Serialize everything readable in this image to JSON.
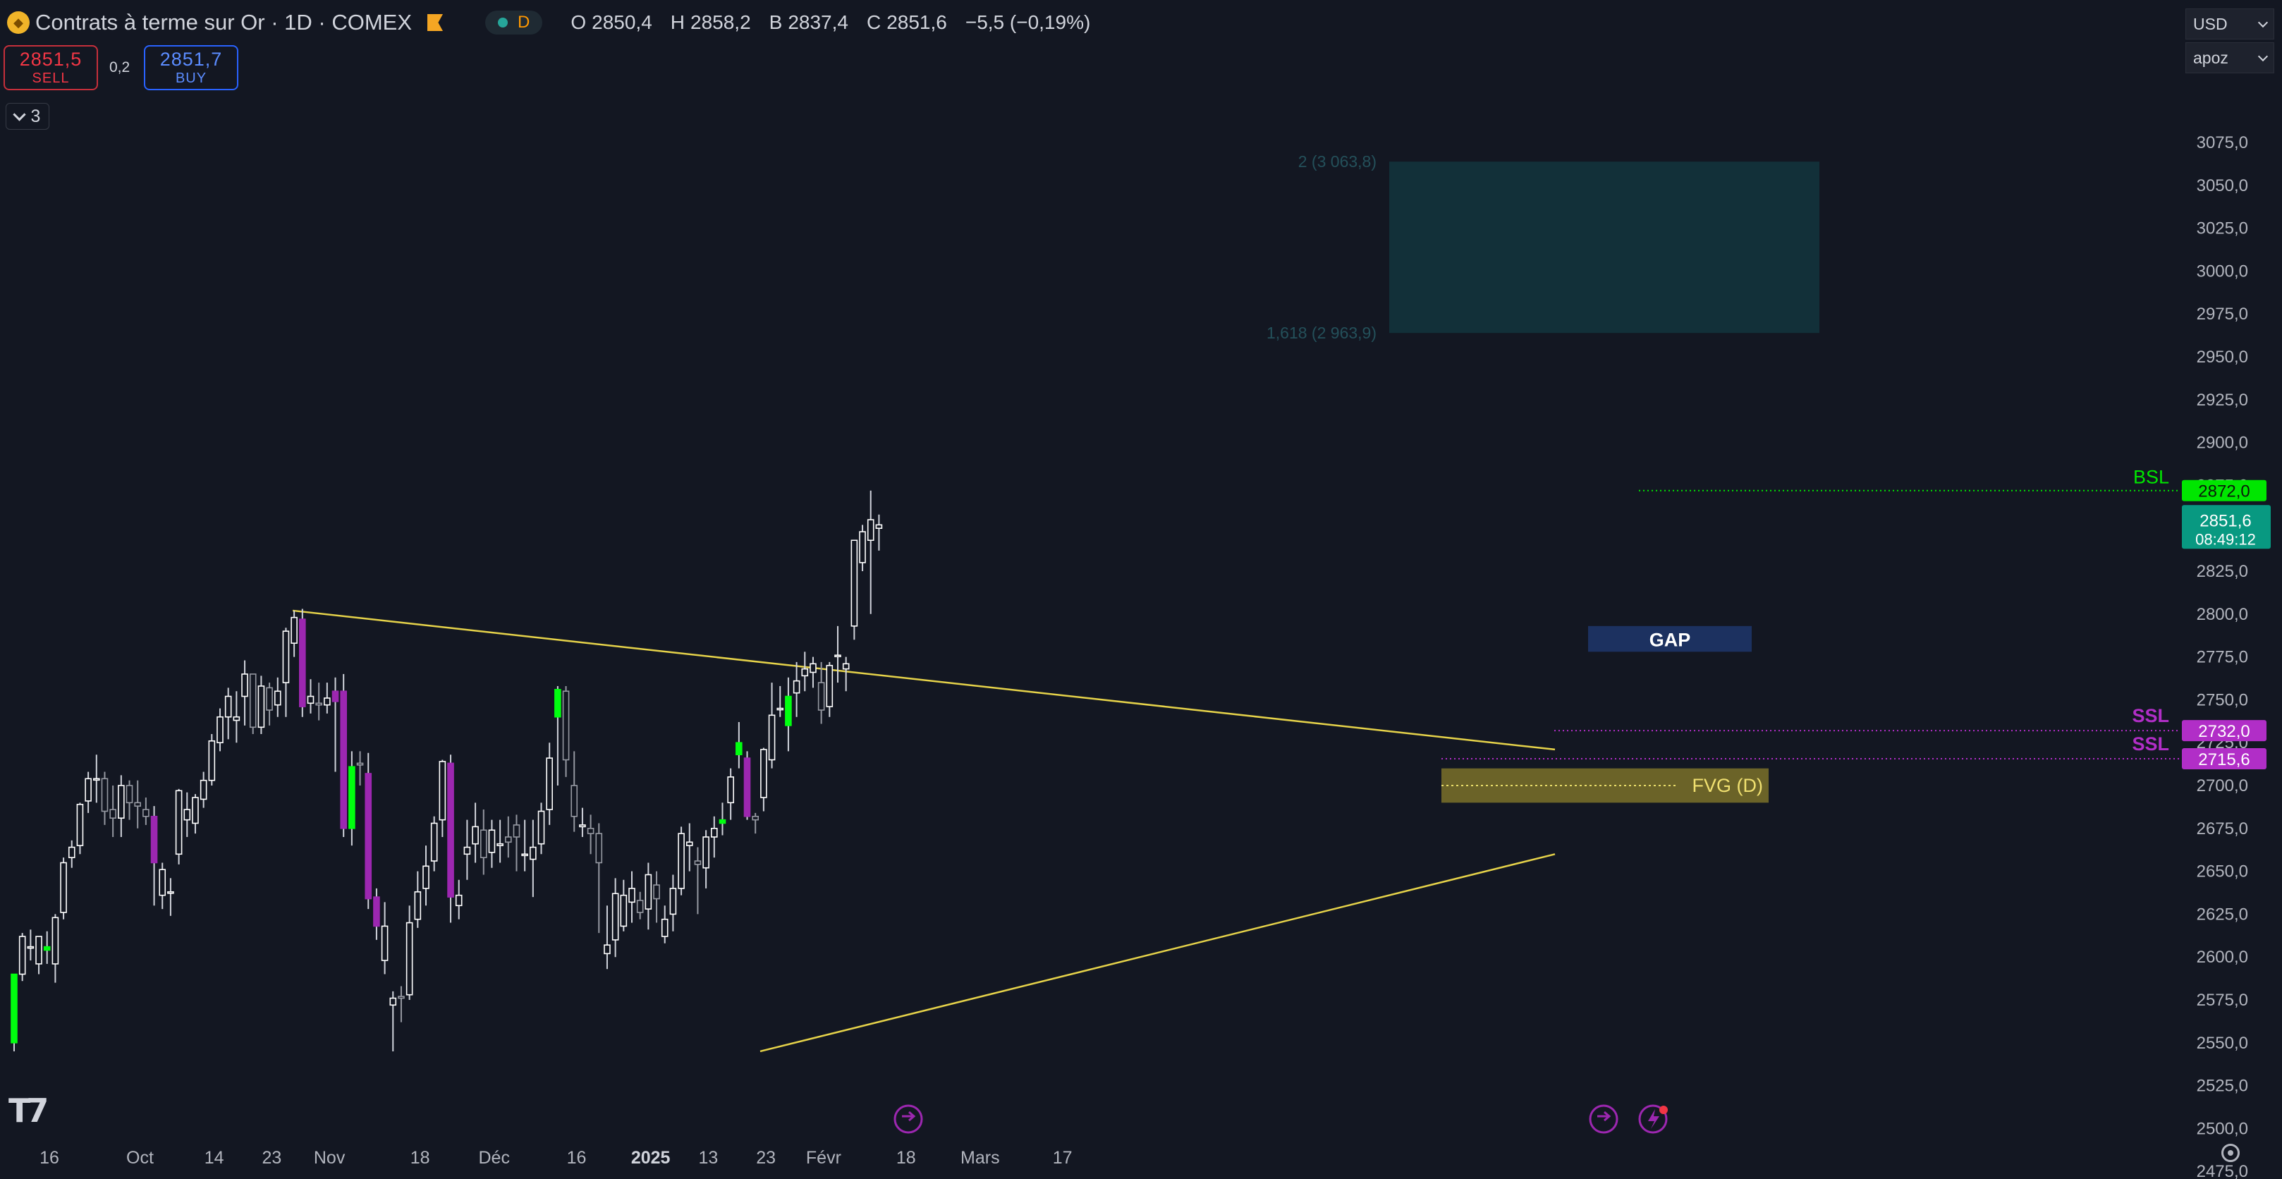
{
  "header": {
    "title": "Contrats à terme sur Or · 1D · COMEX",
    "market_status": "D",
    "ohlc": [
      {
        "label": "O",
        "value": "2850,4"
      },
      {
        "label": "H",
        "value": "2858,2"
      },
      {
        "label": "B",
        "value": "2837,4"
      },
      {
        "label": "C",
        "value": "2851,6"
      }
    ],
    "change": "−5,5 (−0,19%)"
  },
  "trade": {
    "sell_price": "2851,5",
    "sell_label": "SELL",
    "spread": "0,2",
    "buy_price": "2851,7",
    "buy_label": "BUY"
  },
  "indicators": {
    "count": "3"
  },
  "right_controls": {
    "currency": "USD",
    "unit": "apoz"
  },
  "colors": {
    "background": "#131722",
    "bull": "#ffffff",
    "bull_highlight": "#00ff0f",
    "bear": "#131722",
    "bear_highlight": "#9c27b0",
    "trendline": "#e6d34a",
    "target_zone": "#123039",
    "fvg": "#6b6328",
    "gap": "#1c3160",
    "bsl": "#00e600",
    "ssl": "#b12ec7",
    "last_price": "#089981"
  },
  "chart_data": {
    "type": "candlestick",
    "ylim": [
      2462,
      3090
    ],
    "y_ticks": [
      "3075,0",
      "3050,0",
      "3025,0",
      "3000,0",
      "2975,0",
      "2950,0",
      "2925,0",
      "2900,0",
      "2875,0",
      "2850,0",
      "2825,0",
      "2800,0",
      "2775,0",
      "2750,0",
      "2725,0",
      "2700,0",
      "2675,0",
      "2650,0",
      "2625,0",
      "2600,0",
      "2575,0",
      "2550,0",
      "2525,0",
      "2500,0",
      "2475,0"
    ],
    "x_ticks": [
      {
        "label": "16",
        "bar": 0
      },
      {
        "label": "Oct",
        "bar": 11
      },
      {
        "label": "14",
        "bar": 20
      },
      {
        "label": "23",
        "bar": 27
      },
      {
        "label": "Nov",
        "bar": 34
      },
      {
        "label": "18",
        "bar": 45
      },
      {
        "label": "Déc",
        "bar": 54
      },
      {
        "label": "16",
        "bar": 64
      },
      {
        "label": "2025",
        "bar": 73
      },
      {
        "label": "13",
        "bar": 80
      },
      {
        "label": "23",
        "bar": 87
      },
      {
        "label": "Févr",
        "bar": 94
      },
      {
        "label": "18",
        "bar": 104
      },
      {
        "label": "Mars",
        "bar": 113
      },
      {
        "label": "17",
        "bar": 123
      }
    ],
    "candles": [
      [
        2550,
        2590,
        2545,
        2590,
        "g"
      ],
      [
        2590,
        2614,
        2586,
        2612,
        "w"
      ],
      [
        2606,
        2616,
        2598,
        2606,
        "w"
      ],
      [
        2596,
        2612,
        2590,
        2612,
        "w"
      ],
      [
        2606,
        2615,
        2596,
        2604,
        "g"
      ],
      [
        2596,
        2625,
        2585,
        2623,
        "w"
      ],
      [
        2626,
        2658,
        2622,
        2655,
        "w"
      ],
      [
        2658,
        2668,
        2652,
        2664,
        "w"
      ],
      [
        2665,
        2690,
        2660,
        2689,
        "w"
      ],
      [
        2691,
        2708,
        2684,
        2704,
        "w"
      ],
      [
        2704,
        2718,
        2690,
        2704,
        "w"
      ],
      [
        2704,
        2708,
        2677,
        2685,
        "w"
      ],
      [
        2686,
        2700,
        2670,
        2681,
        "w"
      ],
      [
        2681,
        2706,
        2670,
        2700,
        "w"
      ],
      [
        2700,
        2703,
        2680,
        2690,
        "w"
      ],
      [
        2690,
        2703,
        2675,
        2688,
        "w"
      ],
      [
        2686,
        2693,
        2677,
        2682,
        "w"
      ],
      [
        2682,
        2688,
        2630,
        2655,
        "p"
      ],
      [
        2636,
        2655,
        2628,
        2651,
        "w"
      ],
      [
        2638,
        2646,
        2624,
        2638,
        "w"
      ],
      [
        2660,
        2698,
        2654,
        2697,
        "w"
      ],
      [
        2680,
        2696,
        2670,
        2686,
        "w"
      ],
      [
        2678,
        2695,
        2672,
        2693,
        "w"
      ],
      [
        2692,
        2708,
        2687,
        2703,
        "w"
      ],
      [
        2703,
        2730,
        2700,
        2726,
        "w"
      ],
      [
        2725,
        2745,
        2720,
        2740,
        "w"
      ],
      [
        2740,
        2757,
        2727,
        2752,
        "w"
      ],
      [
        2738,
        2755,
        2725,
        2740,
        "w"
      ],
      [
        2752,
        2773,
        2735,
        2765,
        "w"
      ],
      [
        2765,
        2765,
        2730,
        2734,
        "w"
      ],
      [
        2734,
        2764,
        2730,
        2758,
        "w"
      ],
      [
        2757,
        2760,
        2735,
        2744,
        "w"
      ],
      [
        2747,
        2763,
        2740,
        2755,
        "w"
      ],
      [
        2760,
        2792,
        2740,
        2790,
        "w"
      ],
      [
        2783,
        2802,
        2775,
        2798,
        "w"
      ],
      [
        2797,
        2803,
        2740,
        2746,
        "p"
      ],
      [
        2748,
        2762,
        2742,
        2752,
        "w"
      ],
      [
        2748,
        2760,
        2738,
        2747,
        "w"
      ],
      [
        2747,
        2760,
        2742,
        2751,
        "w"
      ],
      [
        2749,
        2763,
        2708,
        2755,
        "p"
      ],
      [
        2755,
        2765,
        2670,
        2675,
        "p"
      ],
      [
        2675,
        2720,
        2665,
        2711,
        "g"
      ],
      [
        2713,
        2720,
        2700,
        2712,
        "w"
      ],
      [
        2707,
        2719,
        2628,
        2634,
        "p"
      ],
      [
        2635,
        2640,
        2610,
        2618,
        "p"
      ],
      [
        2598,
        2632,
        2590,
        2618,
        "w"
      ],
      [
        2572,
        2580,
        2545,
        2576,
        "w"
      ],
      [
        2577,
        2583,
        2562,
        2576,
        "w"
      ],
      [
        2578,
        2630,
        2575,
        2620,
        "w"
      ],
      [
        2622,
        2650,
        2617,
        2638,
        "w"
      ],
      [
        2640,
        2665,
        2630,
        2653,
        "w"
      ],
      [
        2656,
        2682,
        2650,
        2678,
        "w"
      ],
      [
        2680,
        2715,
        2670,
        2714,
        "w"
      ],
      [
        2713,
        2718,
        2620,
        2635,
        "p"
      ],
      [
        2630,
        2645,
        2622,
        2636,
        "w"
      ],
      [
        2660,
        2680,
        2645,
        2664,
        "w"
      ],
      [
        2666,
        2690,
        2655,
        2676,
        "w"
      ],
      [
        2674,
        2686,
        2648,
        2658,
        "w"
      ],
      [
        2661,
        2680,
        2652,
        2674,
        "w"
      ],
      [
        2665,
        2680,
        2655,
        2666,
        "w"
      ],
      [
        2670,
        2682,
        2658,
        2667,
        "w"
      ],
      [
        2677,
        2683,
        2650,
        2670,
        "w"
      ],
      [
        2660,
        2680,
        2650,
        2660,
        "w"
      ],
      [
        2657,
        2680,
        2635,
        2664,
        "w"
      ],
      [
        2666,
        2690,
        2660,
        2685,
        "w"
      ],
      [
        2686,
        2725,
        2677,
        2716,
        "w"
      ],
      [
        2740,
        2758,
        2700,
        2756,
        "g"
      ],
      [
        2755,
        2758,
        2705,
        2715,
        "w"
      ],
      [
        2700,
        2720,
        2673,
        2682,
        "w"
      ],
      [
        2676,
        2687,
        2670,
        2677,
        "w"
      ],
      [
        2675,
        2683,
        2660,
        2672,
        "w"
      ],
      [
        2672,
        2678,
        2614,
        2655,
        "w"
      ],
      [
        2602,
        2630,
        2593,
        2607,
        "w"
      ],
      [
        2610,
        2646,
        2600,
        2637,
        "w"
      ],
      [
        2618,
        2645,
        2615,
        2636,
        "w"
      ],
      [
        2632,
        2650,
        2620,
        2640,
        "w"
      ],
      [
        2633,
        2638,
        2622,
        2626,
        "w"
      ],
      [
        2628,
        2655,
        2616,
        2648,
        "w"
      ],
      [
        2642,
        2650,
        2620,
        2634,
        "w"
      ],
      [
        2612,
        2630,
        2608,
        2622,
        "w"
      ],
      [
        2625,
        2648,
        2615,
        2640,
        "w"
      ],
      [
        2640,
        2676,
        2636,
        2672,
        "w"
      ],
      [
        2665,
        2678,
        2650,
        2667,
        "w"
      ],
      [
        2656,
        2664,
        2625,
        2654,
        "w"
      ],
      [
        2652,
        2674,
        2640,
        2670,
        "w"
      ],
      [
        2670,
        2682,
        2658,
        2675,
        "w"
      ],
      [
        2678,
        2690,
        2671,
        2680,
        "g"
      ],
      [
        2690,
        2710,
        2680,
        2705,
        "w"
      ],
      [
        2718,
        2737,
        2710,
        2725,
        "g"
      ],
      [
        2716,
        2720,
        2680,
        2682,
        "p"
      ],
      [
        2682,
        2684,
        2672,
        2680,
        "w"
      ],
      [
        2693,
        2722,
        2685,
        2721,
        "w"
      ],
      [
        2715,
        2760,
        2710,
        2741,
        "w"
      ],
      [
        2745,
        2758,
        2740,
        2745,
        "w"
      ],
      [
        2735,
        2763,
        2720,
        2752,
        "g"
      ],
      [
        2754,
        2772,
        2740,
        2761,
        "w"
      ],
      [
        2764,
        2778,
        2755,
        2768,
        "w"
      ],
      [
        2766,
        2775,
        2757,
        2771,
        "w"
      ],
      [
        2760,
        2772,
        2736,
        2744,
        "w"
      ],
      [
        2746,
        2772,
        2740,
        2770,
        "w"
      ],
      [
        2776,
        2793,
        2760,
        2776,
        "w"
      ],
      [
        2768,
        2775,
        2755,
        2771,
        "w"
      ],
      [
        2793,
        2843,
        2785,
        2843,
        "w"
      ],
      [
        2830,
        2852,
        2825,
        2848,
        "w"
      ],
      [
        2843,
        2872,
        2800,
        2855,
        "w"
      ],
      [
        2850,
        2858,
        2837,
        2852,
        "w"
      ]
    ],
    "annotations": {
      "fib_2": "2 (3 063,8)",
      "fib_1618": "1,618 (2 963,9)",
      "bsl_label": "BSL",
      "bsl_price": "2872,0",
      "ssl_label": "SSL",
      "ssl1_price": "2732,0",
      "ssl2_price": "2715,6",
      "gap_label": "GAP",
      "fvg_label": "FVG (D)",
      "last_price": "2851,6",
      "countdown": "08:49:12"
    }
  }
}
